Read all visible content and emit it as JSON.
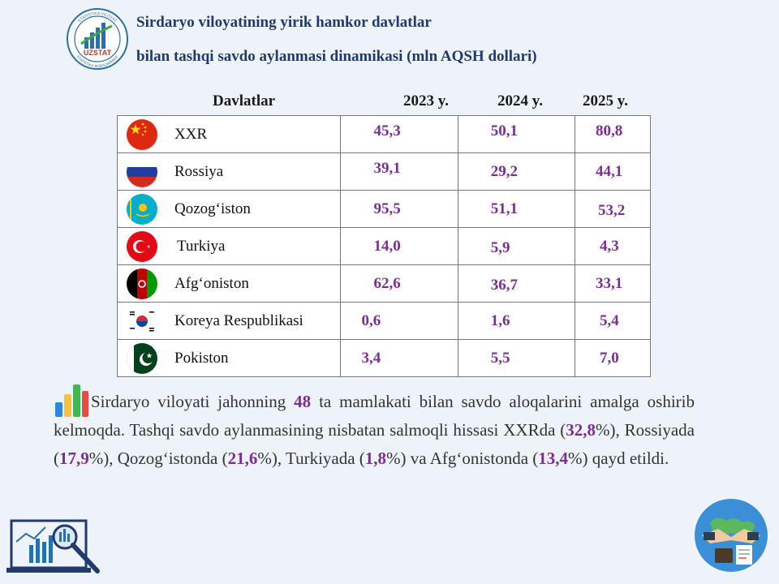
{
  "logo": {
    "top_text": "STATISTIKA VILOYAT",
    "brand": "UZSTAT",
    "bottom_text": "STATISTIKA BOSHQARMASI"
  },
  "title": {
    "line1": "Sirdaryo viloyatining yirik hamkor davlatlar",
    "line2": "bilan tashqi savdo aylanmasi dinamikasi (mln AQSH dollari)"
  },
  "table": {
    "headers": [
      "Davlatlar",
      "2023 y.",
      "2024 y.",
      "2025 y."
    ],
    "rows": [
      {
        "country": "XXR",
        "flag": "china-flag-icon",
        "v2023": "45,3",
        "v2024": "50,1",
        "v2025": "80,8"
      },
      {
        "country": "Rossiya",
        "flag": "russia-flag-icon",
        "v2023": "39,1",
        "v2024": "29,2",
        "v2025": "44,1"
      },
      {
        "country": "Qozog‘iston",
        "flag": "kazakhstan-flag-icon",
        "v2023": "95,5",
        "v2024": "51,1",
        "v2025": "53,2"
      },
      {
        "country": "Turkiya",
        "flag": "turkey-flag-icon",
        "v2023": "14,0",
        "v2024": "5,9",
        "v2025": "4,3"
      },
      {
        "country": "Afg‘oniston",
        "flag": "afghanistan-flag-icon",
        "v2023": "62,6",
        "v2024": "36,7",
        "v2025": "33,1"
      },
      {
        "country": "Koreya Respublikasi",
        "flag": "korea-flag-icon",
        "v2023": "0,6",
        "v2024": "1,6",
        "v2025": "5,4"
      },
      {
        "country": "Pokiston",
        "flag": "pakistan-flag-icon",
        "v2023": "3,4",
        "v2024": "5,5",
        "v2025": "7,0"
      }
    ]
  },
  "paragraph": {
    "t1": "Sirdaryo viloyati jahonning ",
    "count": "48",
    "t2": " ta mamlakati bilan savdo aloqalarini amalga oshirib kelmoqda. Tashqi savdo aylanmasining nisbatan salmoqli hissasi XXRda (",
    "p1": "32,8",
    "t3": "%), Rossiyada (",
    "p2": "17,9",
    "t4": "%), Qozog‘istonda (",
    "p3": "21,6",
    "t5": "%), Turkiyada (",
    "p4": "1,8",
    "t6": "%) va Afg‘onistonda (",
    "p5": "13,4",
    "t7": "%) qayd etildi."
  },
  "colors": {
    "title": "#1f3a6b",
    "value": "#7a2e94",
    "background": "#eef3fa"
  }
}
